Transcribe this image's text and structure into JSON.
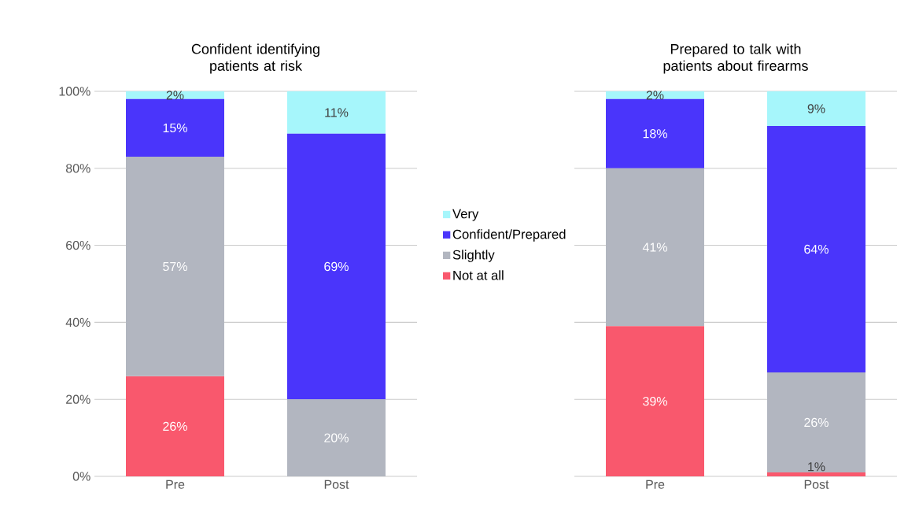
{
  "chart_data": [
    {
      "type": "bar",
      "stacked": true,
      "title": "Confident identifying patients at risk",
      "categories": [
        "Pre",
        "Post"
      ],
      "series": [
        {
          "name": "Not at all",
          "color": "#f9586d",
          "values": [
            26,
            0
          ],
          "value_labels": [
            "26%",
            null
          ]
        },
        {
          "name": "Slightly",
          "color": "#b2b6c0",
          "values": [
            57,
            20
          ],
          "value_labels": [
            "57%",
            "20%"
          ]
        },
        {
          "name": "Confident/Prepared",
          "color": "#4a35fb",
          "values": [
            15,
            69
          ],
          "value_labels": [
            "15%",
            "69%"
          ]
        },
        {
          "name": "Very",
          "color": "#a6f6fb",
          "values": [
            2,
            11
          ],
          "value_labels": [
            "2%",
            "11%"
          ]
        }
      ],
      "ylim": [
        0,
        100
      ],
      "yticks": [
        {
          "value": 0,
          "label": "0%"
        },
        {
          "value": 20,
          "label": "20%"
        },
        {
          "value": 40,
          "label": "40%"
        },
        {
          "value": 60,
          "label": "60%"
        },
        {
          "value": 80,
          "label": "80%"
        },
        {
          "value": 100,
          "label": "100%"
        }
      ],
      "grid": "y",
      "legend": "right"
    },
    {
      "type": "bar",
      "stacked": true,
      "title": "Prepared to talk with patients about firearms",
      "categories": [
        "Pre",
        "Post"
      ],
      "series": [
        {
          "color": "#f9586d",
          "values": [
            39,
            1
          ],
          "value_labels": [
            "39%",
            "1%"
          ]
        },
        {
          "color": "#b2b6c0",
          "values": [
            41,
            26
          ],
          "value_labels": [
            "41%",
            "26%"
          ]
        },
        {
          "color": "#4a35fb",
          "values": [
            18,
            64
          ],
          "value_labels": [
            "18%",
            "64%"
          ]
        },
        {
          "color": "#a6f6fb",
          "values": [
            2,
            9
          ],
          "value_labels": [
            "2%",
            "9%"
          ]
        }
      ],
      "ylim": [
        0,
        100
      ],
      "yticks": [
        {
          "value": 0,
          "label": null
        },
        {
          "value": 20,
          "label": null
        },
        {
          "value": 40,
          "label": null
        },
        {
          "value": 60,
          "label": null
        },
        {
          "value": 80,
          "label": null
        },
        {
          "value": 100,
          "label": null
        }
      ],
      "grid": "y",
      "tick_labels": "x"
    }
  ]
}
